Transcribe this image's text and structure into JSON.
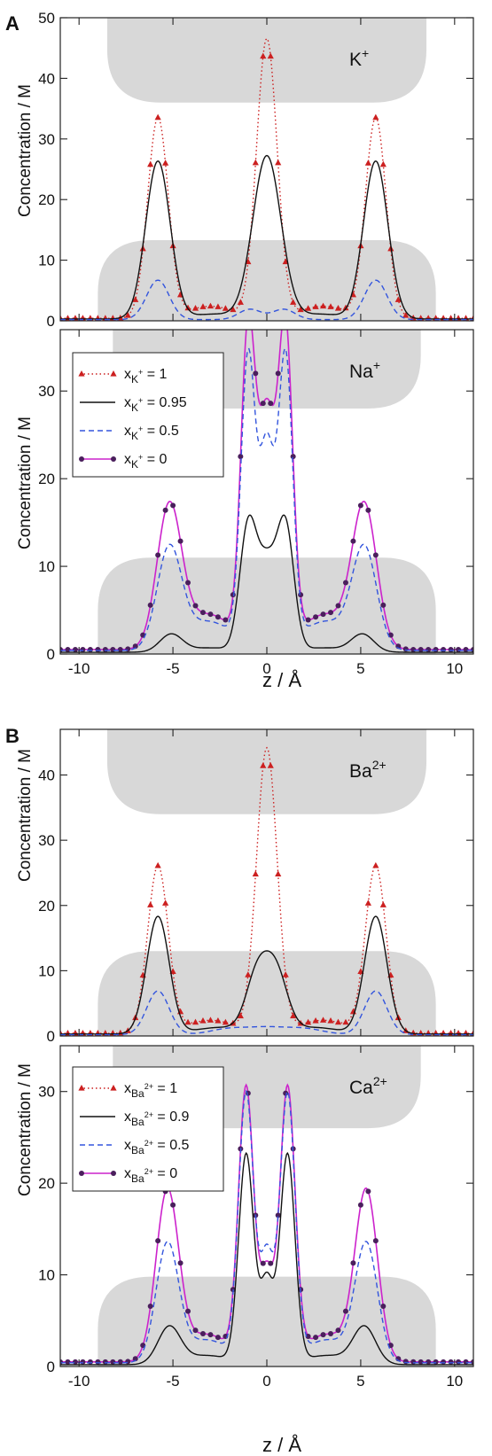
{
  "figure": {
    "labels": {
      "panel_a": "A",
      "panel_b": "B"
    },
    "x_axis_label": "z / Å",
    "y_axis_label": "Concentration / M"
  },
  "chart_data": [
    {
      "type": "line",
      "id": "k",
      "panel_label": "A",
      "ion_label": "K",
      "ion_charge": "+",
      "xlim": [
        -11,
        11
      ],
      "ylim": [
        0,
        50
      ],
      "yticks": [
        0,
        10,
        20,
        30,
        40,
        50
      ],
      "xticks": [
        -10,
        -5,
        0,
        5,
        10
      ],
      "show_x_tick_labels": false,
      "shading": [
        {
          "x0": -8.5,
          "x1": 8.5,
          "y0": 36,
          "y1": 50,
          "rounded": "bottom"
        },
        {
          "x0": -9.0,
          "x1": 9.0,
          "y0": 0,
          "y1": 13.3,
          "rounded": "top"
        }
      ],
      "series": [
        {
          "name": "1",
          "style": "triangle-dotted",
          "color": "#cc2020",
          "peaks": [
            [
              -5.8,
              33.0,
              0.55
            ],
            [
              0.0,
              46.0,
              0.55
            ],
            [
              5.8,
              33.0,
              0.55
            ]
          ],
          "wells": [
            [
              -3.0,
              2.0,
              1.2
            ],
            [
              3.0,
              2.0,
              1.2
            ]
          ],
          "base": 0.4
        },
        {
          "name": "0.95",
          "style": "solid",
          "color": "#111111",
          "peaks": [
            [
              -5.8,
              26.0,
              0.65
            ],
            [
              0.0,
              26.8,
              0.75
            ],
            [
              5.8,
              26.0,
              0.65
            ]
          ],
          "wells": [
            [
              -2.8,
              0.8,
              1.3
            ],
            [
              2.8,
              0.8,
              1.3
            ]
          ],
          "base": 0.3
        },
        {
          "name": "0.5",
          "style": "dashed",
          "color": "#3355dd",
          "peaks": [
            [
              -5.8,
              6.5,
              0.6
            ],
            [
              -0.9,
              1.7,
              0.6
            ],
            [
              0.9,
              1.7,
              0.6
            ],
            [
              5.8,
              6.5,
              0.6
            ]
          ],
          "wells": [],
          "base": 0.2
        }
      ]
    },
    {
      "type": "line",
      "id": "na",
      "ion_label": "Na",
      "ion_charge": "+",
      "xlim": [
        -11,
        11
      ],
      "ylim": [
        0,
        37
      ],
      "yticks": [
        0,
        10,
        20,
        30
      ],
      "xticks": [
        -10,
        -5,
        0,
        5,
        10
      ],
      "show_x_tick_labels": true,
      "shading": [
        {
          "x0": -8.2,
          "x1": 8.2,
          "y0": 28,
          "y1": 37,
          "rounded": "bottom"
        },
        {
          "x0": -9.0,
          "x1": 9.0,
          "y0": 0,
          "y1": 11,
          "rounded": "top"
        }
      ],
      "legend": {
        "symbol": "x",
        "subscript": "K",
        "subscript_charge": "+",
        "entries": [
          "1",
          "0.95",
          "0.5",
          "0"
        ]
      },
      "series": [
        {
          "name": "0",
          "style": "circle-solid",
          "color": "#cc22cc",
          "marker_color": "#4a1f5c",
          "peaks": [
            [
              -5.2,
              15.8,
              0.65
            ],
            [
              -1.0,
              35.0,
              0.38
            ],
            [
              1.0,
              35.0,
              0.38
            ],
            [
              5.2,
              15.8,
              0.65
            ],
            [
              0.0,
              26.0,
              0.45
            ]
          ],
          "wells": [
            [
              -3.1,
              4.0,
              1.3
            ],
            [
              3.1,
              4.0,
              1.3
            ]
          ],
          "base": 0.5
        },
        {
          "name": "0.5",
          "style": "dashed",
          "color": "#3355dd",
          "peaks": [
            [
              -5.2,
              11.2,
              0.65
            ],
            [
              -1.0,
              32.5,
              0.38
            ],
            [
              1.0,
              32.5,
              0.38
            ],
            [
              5.2,
              11.2,
              0.65
            ],
            [
              0.0,
              22.5,
              0.4
            ]
          ],
          "wells": [
            [
              -3.1,
              3.3,
              1.3
            ],
            [
              3.1,
              3.3,
              1.3
            ]
          ],
          "base": 0.4
        },
        {
          "name": "0.95",
          "style": "solid",
          "color": "#111111",
          "peaks": [
            [
              -5.1,
              2.0,
              0.6
            ],
            [
              -1.0,
              14.0,
              0.45
            ],
            [
              1.0,
              14.0,
              0.45
            ],
            [
              5.1,
              2.0,
              0.6
            ],
            [
              0.0,
              9.5,
              0.5
            ]
          ],
          "wells": [
            [
              -3.0,
              0.5,
              1.2
            ],
            [
              3.0,
              0.5,
              1.2
            ]
          ],
          "base": 0.2
        },
        {
          "name": "1",
          "style": "none",
          "color": "#cc2020",
          "peaks": [],
          "wells": [],
          "base": 0
        }
      ]
    },
    {
      "type": "line",
      "id": "ba",
      "panel_label": "B",
      "ion_label": "Ba",
      "ion_charge": "2+",
      "xlim": [
        -11,
        11
      ],
      "ylim": [
        0,
        47
      ],
      "yticks": [
        0,
        10,
        20,
        30,
        40
      ],
      "xticks": [
        -10,
        -5,
        0,
        5,
        10
      ],
      "show_x_tick_labels": false,
      "shading": [
        {
          "x0": -8.5,
          "x1": 8.5,
          "y0": 34,
          "y1": 47,
          "rounded": "bottom"
        },
        {
          "x0": -9.0,
          "x1": 9.0,
          "y0": 0,
          "y1": 13,
          "rounded": "top"
        }
      ],
      "series": [
        {
          "name": "1",
          "style": "triangle-dotted",
          "color": "#cc2020",
          "peaks": [
            [
              -5.8,
              25.5,
              0.55
            ],
            [
              0.0,
              43.5,
              0.55
            ],
            [
              5.8,
              25.5,
              0.55
            ]
          ],
          "wells": [
            [
              -3.0,
              2.0,
              1.3
            ],
            [
              3.0,
              2.0,
              1.3
            ]
          ],
          "base": 0.4
        },
        {
          "name": "0.9",
          "style": "solid",
          "color": "#111111",
          "peaks": [
            [
              -5.8,
              18.0,
              0.6
            ],
            [
              -0.5,
              8.8,
              0.6
            ],
            [
              0.5,
              8.8,
              0.6
            ],
            [
              5.8,
              18.0,
              0.6
            ]
          ],
          "wells": [
            [
              -2.5,
              1.0,
              1.3
            ],
            [
              2.5,
              1.0,
              1.3
            ]
          ],
          "base": 0.3
        },
        {
          "name": "0.5",
          "style": "dashed",
          "color": "#3355dd",
          "peaks": [
            [
              -5.8,
              6.7,
              0.6
            ],
            [
              0.0,
              1.0,
              1.0
            ],
            [
              -2.0,
              0.9,
              1.0
            ],
            [
              2.0,
              0.9,
              1.0
            ],
            [
              5.8,
              6.7,
              0.6
            ]
          ],
          "wells": [],
          "base": 0.2
        }
      ]
    },
    {
      "type": "line",
      "id": "ca",
      "ion_label": "Ca",
      "ion_charge": "2+",
      "xlim": [
        -11,
        11
      ],
      "ylim": [
        0,
        35
      ],
      "yticks": [
        0,
        10,
        20,
        30
      ],
      "xticks": [
        -10,
        -5,
        0,
        5,
        10
      ],
      "show_x_tick_labels": true,
      "shading": [
        {
          "x0": -8.2,
          "x1": 8.2,
          "y0": 26,
          "y1": 35,
          "rounded": "bottom"
        },
        {
          "x0": -9.0,
          "x1": 9.0,
          "y0": 0,
          "y1": 9.8,
          "rounded": "top"
        }
      ],
      "legend": {
        "symbol": "x",
        "subscript": "Ba",
        "subscript_charge": "2+",
        "entries": [
          "1",
          "0.9",
          "0.5",
          "0"
        ]
      },
      "series": [
        {
          "name": "0",
          "style": "circle-solid",
          "color": "#cc22cc",
          "marker_color": "#4a1f5c",
          "peaks": [
            [
              -5.3,
              18.3,
              0.6
            ],
            [
              -1.1,
              29.5,
              0.4
            ],
            [
              1.1,
              29.5,
              0.4
            ],
            [
              5.3,
              18.3,
              0.6
            ],
            [
              0.0,
              9.5,
              0.35
            ]
          ],
          "wells": [
            [
              -3.2,
              3.0,
              1.2
            ],
            [
              3.2,
              3.0,
              1.2
            ]
          ],
          "base": 0.5
        },
        {
          "name": "0.5",
          "style": "dashed",
          "color": "#3355dd",
          "peaks": [
            [
              -5.3,
              12.7,
              0.6
            ],
            [
              -1.1,
              29.0,
              0.4
            ],
            [
              1.1,
              29.0,
              0.4
            ],
            [
              5.3,
              12.7,
              0.6
            ],
            [
              0.0,
              11.5,
              0.35
            ]
          ],
          "wells": [
            [
              -3.2,
              2.5,
              1.2
            ],
            [
              3.2,
              2.5,
              1.2
            ]
          ],
          "base": 0.4
        },
        {
          "name": "0.9",
          "style": "solid",
          "color": "#111111",
          "peaks": [
            [
              -5.2,
              4.0,
              0.6
            ],
            [
              -1.1,
              22.8,
              0.4
            ],
            [
              1.1,
              22.8,
              0.4
            ],
            [
              5.2,
              4.0,
              0.6
            ],
            [
              0.0,
              9.0,
              0.35
            ]
          ],
          "wells": [
            [
              -3.2,
              1.0,
              1.2
            ],
            [
              3.2,
              1.0,
              1.2
            ]
          ],
          "base": 0.2
        },
        {
          "name": "1",
          "style": "none",
          "color": "#cc2020",
          "peaks": [],
          "wells": [],
          "base": 0
        }
      ]
    }
  ]
}
